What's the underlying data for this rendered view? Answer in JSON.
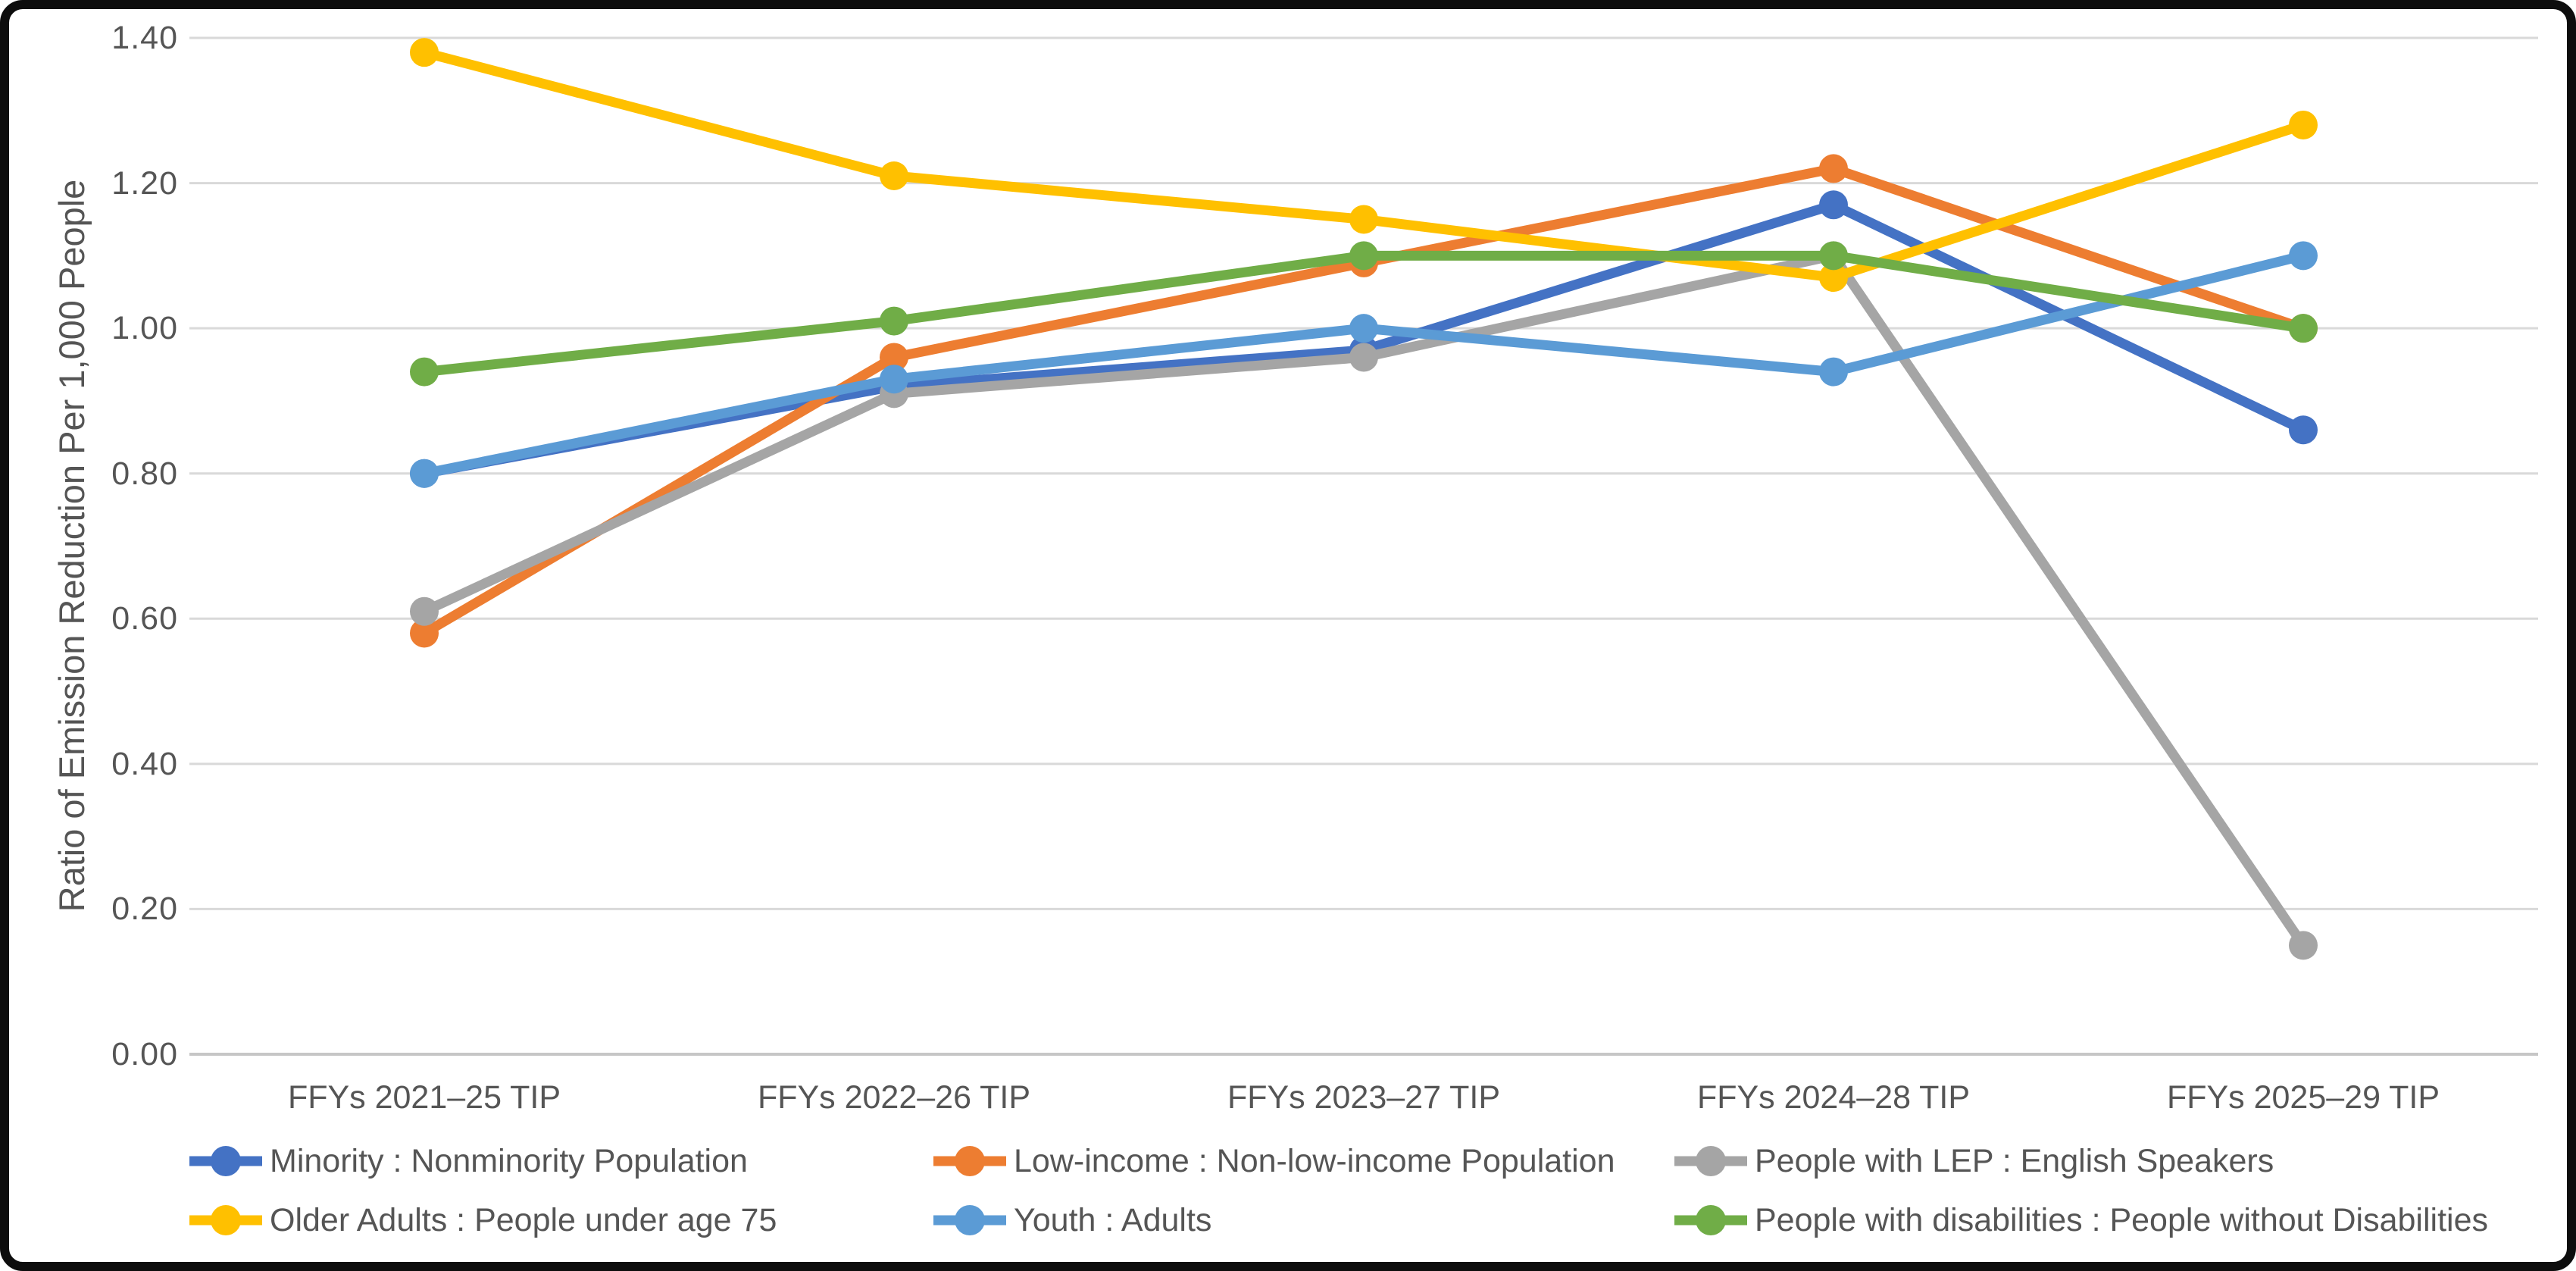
{
  "chart_data": {
    "type": "line",
    "title": "",
    "xlabel": "",
    "ylabel": "Ratio of Emission Reduction Per 1,000 People",
    "ylim": [
      0.0,
      1.4
    ],
    "ytick_step": 0.2,
    "yticks": [
      "0.00",
      "0.20",
      "0.40",
      "0.60",
      "0.80",
      "1.00",
      "1.20",
      "1.40"
    ],
    "grid": "horizontal",
    "legend_position": "bottom",
    "categories": [
      "FFYs 2021–25 TIP",
      "FFYs 2022–26 TIP",
      "FFYs 2023–27 TIP",
      "FFYs 2024–28 TIP",
      "FFYs 2025–29 TIP"
    ],
    "series": [
      {
        "name": "Minority : Nonminority Population",
        "color": "#4472C4",
        "values": [
          0.8,
          0.92,
          0.97,
          1.17,
          0.86
        ]
      },
      {
        "name": "Low-income : Non-low-income Population",
        "color": "#ED7D31",
        "values": [
          0.58,
          0.96,
          1.09,
          1.22,
          1.0
        ]
      },
      {
        "name": "People with LEP : English Speakers",
        "color": "#A5A5A5",
        "values": [
          0.61,
          0.91,
          0.96,
          1.1,
          0.15
        ]
      },
      {
        "name": "Older Adults : People under age 75",
        "color": "#FFC000",
        "values": [
          1.38,
          1.21,
          1.15,
          1.07,
          1.28
        ]
      },
      {
        "name": "Youth : Adults",
        "color": "#5B9BD5",
        "values": [
          0.8,
          0.93,
          1.0,
          0.94,
          1.1
        ]
      },
      {
        "name": "People with disabilities : People without Disabilities",
        "color": "#70AD47",
        "values": [
          0.94,
          1.01,
          1.1,
          1.1,
          1.0
        ]
      }
    ]
  },
  "styles": {
    "grid_color": "#D9D9D9",
    "zero_line_color": "#C6C6C6",
    "text_color": "#555555",
    "background": "#FFFFFF",
    "frame_color": "#0D0D0D"
  }
}
